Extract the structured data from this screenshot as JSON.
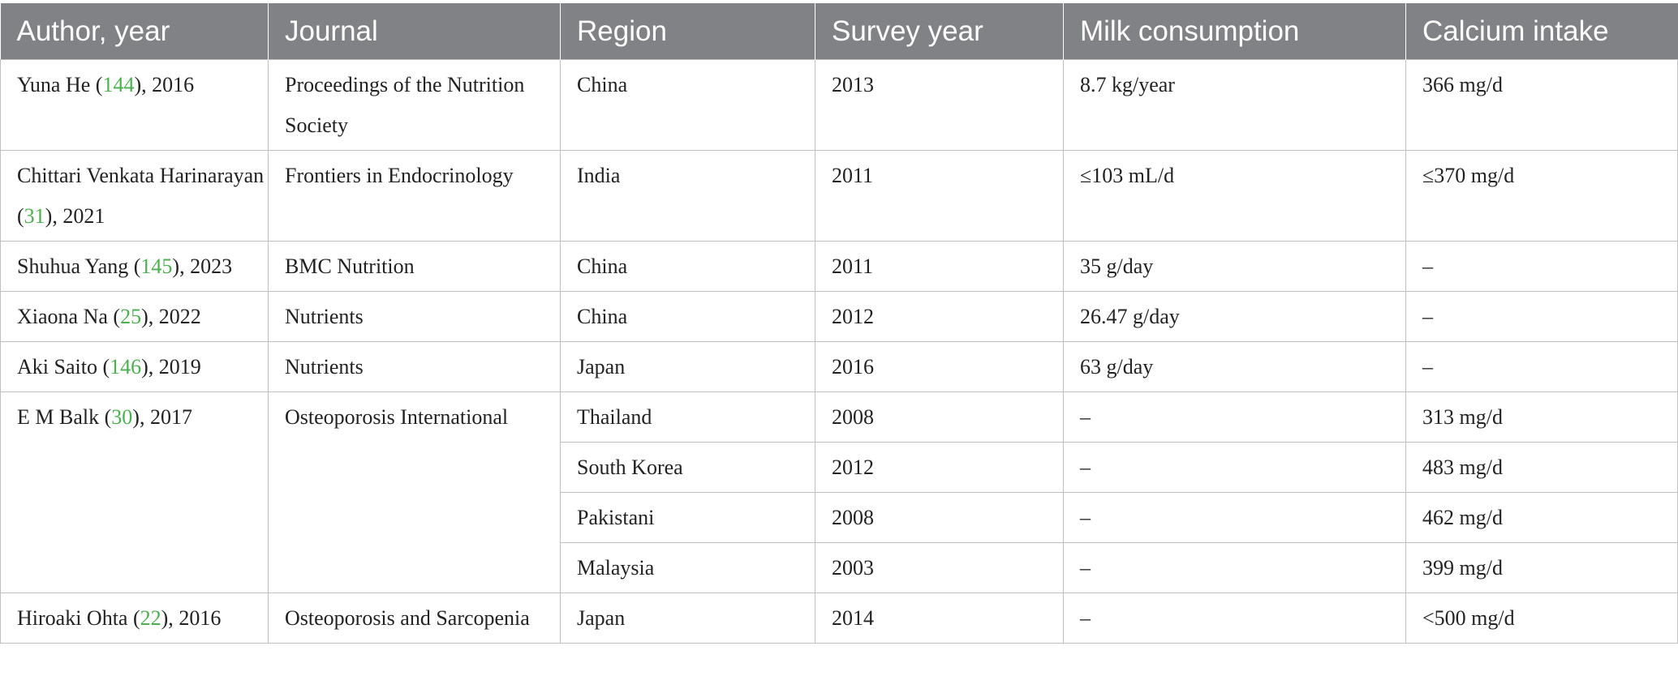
{
  "table": {
    "headers": [
      "Author, year",
      "Journal",
      "Region",
      "Survey year",
      "Milk consumption",
      "Calcium intake"
    ],
    "rows": [
      {
        "author": "Yuna He",
        "ref": "144",
        "year": "2016",
        "journal": "Proceedings of the Nutrition Society",
        "region": "China",
        "survey_year": "2013",
        "milk": "8.7 kg/year",
        "calcium": "366 mg/d"
      },
      {
        "author": "Chittari Venkata Harinarayan",
        "ref": "31",
        "year": "2021",
        "journal": "Frontiers in Endocrinology",
        "region": "India",
        "survey_year": "2011",
        "milk": "≤103 mL/d",
        "calcium": "≤370 mg/d"
      },
      {
        "author": "Shuhua Yang",
        "ref": "145",
        "year": "2023",
        "journal": "BMC Nutrition",
        "region": "China",
        "survey_year": "2011",
        "milk": "35 g/day",
        "calcium": "–"
      },
      {
        "author": "Xiaona Na",
        "ref": "25",
        "year": "2022",
        "journal": "Nutrients",
        "region": "China",
        "survey_year": "2012",
        "milk": "26.47 g/day",
        "calcium": "–"
      },
      {
        "author": "Aki Saito",
        "ref": "146",
        "year": "2019",
        "journal": "Nutrients",
        "region": "Japan",
        "survey_year": "2016",
        "milk": "63 g/day",
        "calcium": "–"
      }
    ],
    "balk": {
      "author": "E M Balk",
      "ref": "30",
      "year": "2017",
      "journal": "Osteoporosis International",
      "subrows": [
        {
          "region": "Thailand",
          "survey_year": "2008",
          "milk": "–",
          "calcium": "313 mg/d"
        },
        {
          "region": "South Korea",
          "survey_year": "2012",
          "milk": "–",
          "calcium": "483 mg/d"
        },
        {
          "region": "Pakistani",
          "survey_year": "2008",
          "milk": "–",
          "calcium": "462 mg/d"
        },
        {
          "region": "Malaysia",
          "survey_year": "2003",
          "milk": "–",
          "calcium": "399 mg/d"
        }
      ]
    },
    "last": {
      "author": "Hiroaki Ohta",
      "ref": "22",
      "year": "2016",
      "journal": "Osteoporosis and Sarcopenia",
      "region": "Japan",
      "survey_year": "2014",
      "milk": "–",
      "calcium": "<500 mg/d"
    }
  }
}
